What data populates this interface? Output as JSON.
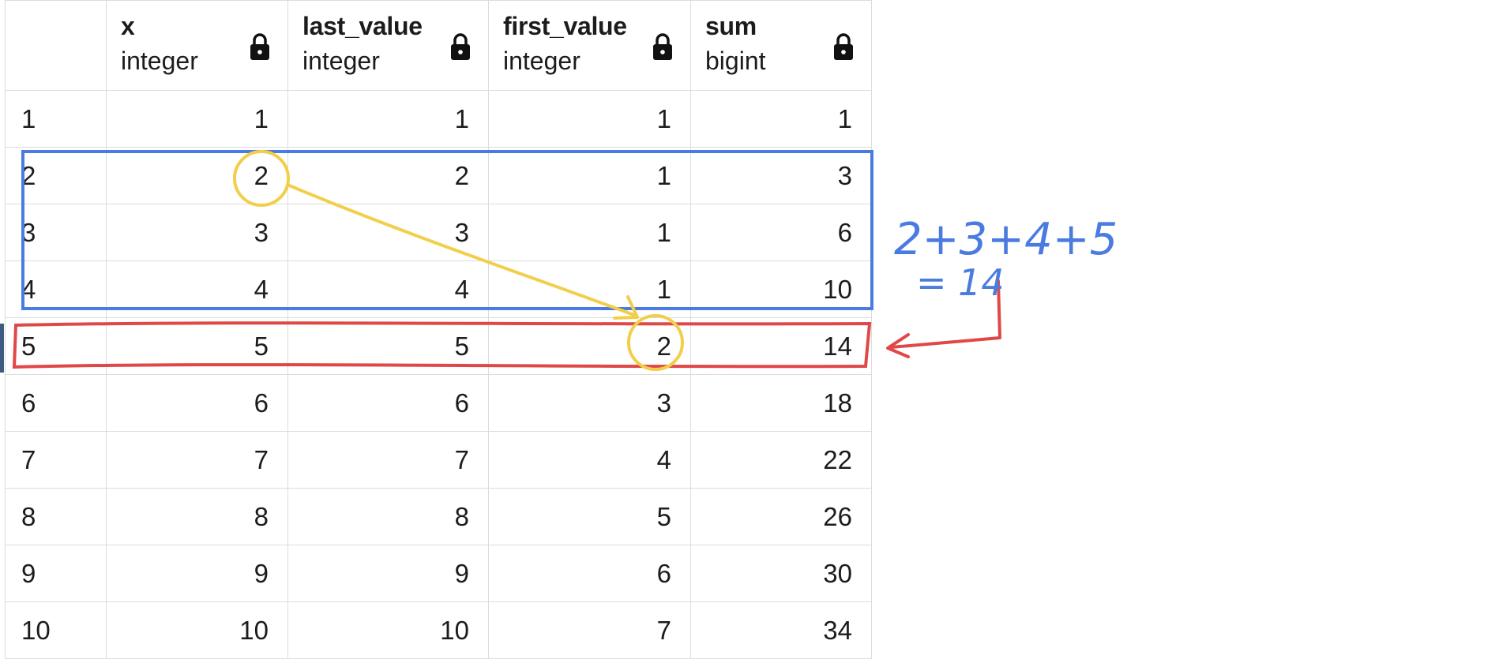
{
  "columns": [
    {
      "name": "",
      "type": "",
      "icon": ""
    },
    {
      "name": "x",
      "type": "integer",
      "icon": "lock-icon"
    },
    {
      "name": "last_value",
      "type": "integer",
      "icon": "lock-icon"
    },
    {
      "name": "first_value",
      "type": "integer",
      "icon": "lock-icon"
    },
    {
      "name": "sum",
      "type": "bigint",
      "icon": "lock-icon"
    }
  ],
  "rows": [
    [
      "1",
      "1",
      "1",
      "1",
      "1"
    ],
    [
      "2",
      "2",
      "2",
      "1",
      "3"
    ],
    [
      "3",
      "3",
      "3",
      "1",
      "6"
    ],
    [
      "4",
      "4",
      "4",
      "1",
      "10"
    ],
    [
      "5",
      "5",
      "5",
      "2",
      "14"
    ],
    [
      "6",
      "6",
      "6",
      "3",
      "18"
    ],
    [
      "7",
      "7",
      "7",
      "4",
      "22"
    ],
    [
      "8",
      "8",
      "8",
      "5",
      "26"
    ],
    [
      "9",
      "9",
      "9",
      "6",
      "30"
    ],
    [
      "10",
      "10",
      "10",
      "7",
      "34"
    ]
  ],
  "annotations": {
    "sum_expression": "2+3+4+5",
    "sum_result": "= 14",
    "colors": {
      "window_box": "#4a7be0",
      "current_row": "#e04848",
      "first_value_link": "#f2cf4a"
    }
  }
}
